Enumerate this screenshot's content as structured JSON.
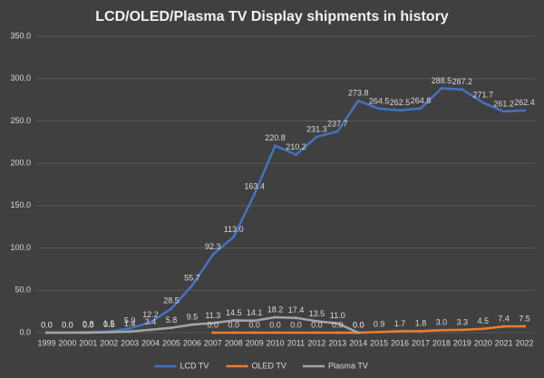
{
  "chart_data": {
    "type": "line",
    "title": "LCD/OLED/Plasma TV Display shipments in history",
    "categories": [
      "1999",
      "2000",
      "2001",
      "2002",
      "2003",
      "2004",
      "2005",
      "2006",
      "2007",
      "2008",
      "2009",
      "2010",
      "2011",
      "2012",
      "2013",
      "2014",
      "2015",
      "2016",
      "2017",
      "2018",
      "2019",
      "2020",
      "2021",
      "2022"
    ],
    "series": [
      {
        "name": "LCD TV",
        "color": "#4472c4",
        "values": [
          0.0,
          0.0,
          0.8,
          1.5,
          5.0,
          12.2,
          28.5,
          55.7,
          92.3,
          113.0,
          163.4,
          220.8,
          210.2,
          231.3,
          237.7,
          273.8,
          264.5,
          262.5,
          264.8,
          288.5,
          287.2,
          271.7,
          261.2,
          262.4
        ],
        "value_labels": [
          "0.0",
          "0.0",
          "0.8",
          "1.5",
          "5.0",
          "12.2",
          "28.5",
          "55.7",
          "92.3",
          "113.0",
          "163.4",
          "220.8",
          "210.2",
          "231.3",
          "237.7",
          "273.8",
          "264.5",
          "262.5",
          "264.8",
          "288.5",
          "287.2",
          "271.7",
          "261.2",
          "262.4"
        ]
      },
      {
        "name": "OLED TV",
        "color": "#ed7d31",
        "values": [
          null,
          null,
          null,
          null,
          null,
          null,
          null,
          null,
          0.0,
          0.0,
          0.0,
          0.0,
          0.0,
          0.0,
          0.0,
          0.0,
          0.9,
          1.7,
          1.8,
          3.0,
          3.3,
          4.5,
          7.4,
          7.5
        ],
        "value_labels": [
          null,
          null,
          null,
          null,
          null,
          null,
          null,
          null,
          "0.0",
          "0.0",
          "0.0",
          "0.0",
          "0.0",
          "0.0",
          "0.0",
          "0.0",
          "0.9",
          "1.7",
          "1.8",
          "3.0",
          "3.3",
          "4.5",
          "7.4",
          "7.5"
        ]
      },
      {
        "name": "Plasma TV",
        "color": "#a5a5a5",
        "values": [
          0.0,
          0.0,
          0.0,
          0.5,
          1.4,
          3.4,
          5.8,
          9.5,
          11.3,
          14.5,
          14.1,
          18.2,
          17.4,
          13.5,
          11.0,
          0.0,
          null,
          null,
          null,
          null,
          null,
          null,
          null,
          null
        ],
        "value_labels": [
          "0.0",
          "0.0",
          "0.0",
          "0.5",
          "1.4",
          "3.4",
          "5.8",
          "9.5",
          "11.3",
          "14.5",
          "14.1",
          "18.2",
          "17.4",
          "13.5",
          "11.0",
          "0.0",
          null,
          null,
          null,
          null,
          null,
          null,
          null,
          null
        ]
      }
    ],
    "ylim": [
      0,
      350
    ],
    "yticks": [
      {
        "value": 0,
        "label": "0.0"
      },
      {
        "value": 50,
        "label": "50.0"
      },
      {
        "value": 100,
        "label": "100.0"
      },
      {
        "value": 150,
        "label": "150.0"
      },
      {
        "value": 200,
        "label": "200.0"
      },
      {
        "value": 250,
        "label": "250.0"
      },
      {
        "value": 300,
        "label": "300.0"
      },
      {
        "value": 350,
        "label": "350.0"
      }
    ],
    "grid": true,
    "legend": "bottom"
  }
}
